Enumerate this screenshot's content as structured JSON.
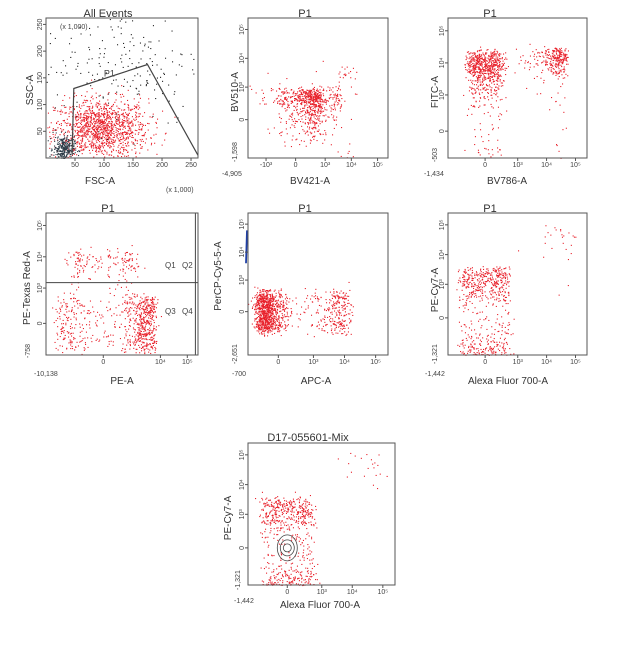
{
  "colors": {
    "events": "#e8202a",
    "dense_events": "#2b3a46",
    "sparse_events": "#222222",
    "gate_line": "#444444",
    "blue_marker": "#1f3fa6",
    "frame": "#555555"
  },
  "chart_data": [
    {
      "id": "p1",
      "type": "scatter",
      "title": "All Events",
      "xlabel": "FSC-A",
      "ylabel": "SSC-A",
      "x_scale_note": "(x 1,000)",
      "y_scale_note": "(x 1,000)",
      "xlim": [
        0,
        262
      ],
      "ylim": [
        0,
        262
      ],
      "x_ticks": [
        "50",
        "100",
        "150",
        "200",
        "250"
      ],
      "y_ticks": [
        "50",
        "100",
        "150",
        "200",
        "250"
      ],
      "gate": {
        "name": "P1",
        "vertices": [
          [
            45,
            5
          ],
          [
            48,
            130
          ],
          [
            175,
            175
          ],
          [
            262,
            5
          ]
        ]
      },
      "populations": [
        {
          "color": "events",
          "n": 1300,
          "cx": 95,
          "cy": 55,
          "sx": 40,
          "sy": 28
        },
        {
          "color": "dense_events",
          "n": 280,
          "cx": 30,
          "cy": 18,
          "sx": 9,
          "sy": 12
        },
        {
          "color": "sparse_events",
          "n": 200,
          "cx": 130,
          "cy": 180,
          "sx": 70,
          "sy": 60
        }
      ]
    },
    {
      "id": "p2",
      "type": "scatter",
      "title": "P1",
      "xlabel": "BV421-A",
      "ylabel": "BV510-A",
      "xlim": [
        -4905,
        250000
      ],
      "ylim": [
        -1598,
        250000
      ],
      "x_min_label": "-4,905",
      "y_min_label": "-1,598",
      "x_ticks": [
        "-10³",
        "0",
        "10³",
        "10⁴",
        "10⁵"
      ],
      "y_ticks": [
        "0",
        "10³",
        "10⁴",
        "10⁵"
      ],
      "populations": [
        {
          "color": "events",
          "n": 600,
          "cx": 200,
          "cy": 300,
          "sx": 250,
          "sy": 300
        },
        {
          "color": "events",
          "n": 150,
          "cx": 1500,
          "cy": 400,
          "sx": 1500,
          "sy": 300
        },
        {
          "color": "events",
          "n": 60,
          "cx": 3000,
          "cy": 800,
          "sx": 5000,
          "sy": 3000
        }
      ]
    },
    {
      "id": "p3",
      "type": "scatter",
      "title": "P1",
      "xlabel": "BV786-A",
      "ylabel": "FITC-A",
      "xlim": [
        -1434,
        250000
      ],
      "ylim": [
        -503,
        250000
      ],
      "x_min_label": "-1,434",
      "y_min_label": "-503",
      "x_ticks": [
        "0",
        "10³",
        "10⁴",
        "10⁵"
      ],
      "y_ticks": [
        "0",
        "10³",
        "10⁴",
        "10⁵"
      ],
      "populations": [
        {
          "color": "events",
          "n": 1100,
          "cx": 0,
          "cy": 2500,
          "sx": 150,
          "sy": 9000
        },
        {
          "color": "events",
          "n": 350,
          "cx": 20000,
          "cy": 12000,
          "sx": 14000,
          "sy": 9000
        }
      ]
    },
    {
      "id": "p4",
      "type": "scatter",
      "title": "P1",
      "xlabel": "PE-A",
      "ylabel": "PE-Texas Red-A",
      "xlim": [
        -10138,
        250000
      ],
      "ylim": [
        -758,
        250000
      ],
      "x_min_label": "-10,138",
      "y_min_label": "-758",
      "x_ticks": [
        "0",
        "10⁴",
        "10⁵"
      ],
      "y_ticks": [
        "0",
        "10³",
        "10⁴",
        "10⁵"
      ],
      "quadrants": {
        "x_split": 200000,
        "y_split": 1500,
        "labels": [
          "Q1",
          "Q2",
          "Q3",
          "Q4"
        ]
      },
      "populations": [
        {
          "color": "events",
          "n": 700,
          "cx": 1500,
          "cy": 0,
          "sx": 2500,
          "sy": 250
        },
        {
          "color": "events",
          "n": 220,
          "cx": 0,
          "cy": 4000,
          "sx": 700,
          "sy": 6000
        }
      ]
    },
    {
      "id": "p5",
      "type": "scatter",
      "title": "P1",
      "xlabel": "APC-A",
      "ylabel": "PerCP-Cy5-5-A",
      "xlim": [
        -700,
        250000
      ],
      "ylim": [
        -2651,
        250000
      ],
      "x_min_label": "-700",
      "y_min_label": "-2,651",
      "x_ticks": [
        "0",
        "10³",
        "10⁴",
        "10⁵"
      ],
      "y_ticks": [
        "0",
        "10³",
        "10⁴",
        "10⁵"
      ],
      "blue_marker": {
        "x": -700,
        "y0": 4000,
        "y1": 60000
      },
      "populations": [
        {
          "color": "events",
          "n": 900,
          "cx": -150,
          "cy": 0,
          "sx": 120,
          "sy": 180
        },
        {
          "color": "events",
          "n": 400,
          "cx": 2000,
          "cy": 0,
          "sx": 6000,
          "sy": 200
        }
      ]
    },
    {
      "id": "p6",
      "type": "scatter",
      "title": "P1",
      "xlabel": "Alexa Fluor 700-A",
      "ylabel": "PE-Cy7-A",
      "xlim": [
        -1442,
        250000
      ],
      "ylim": [
        -1321,
        250000
      ],
      "x_min_label": "-1,442",
      "y_min_label": "-1,321",
      "x_ticks": [
        "0",
        "10³",
        "10⁴",
        "10⁵"
      ],
      "y_ticks": [
        "0",
        "10³",
        "10⁴",
        "10⁵"
      ],
      "populations": [
        {
          "color": "events",
          "n": 700,
          "cx": 0,
          "cy": 400,
          "sx": 250,
          "sy": 1500
        },
        {
          "color": "events",
          "n": 40,
          "cx": 30000,
          "cy": 30000,
          "sx": 40000,
          "sy": 40000
        }
      ]
    },
    {
      "id": "p7",
      "type": "scatter",
      "title": "D17-055601-Mix",
      "xlabel": "Alexa Fluor 700-A",
      "ylabel": "PE-Cy7-A",
      "xlim": [
        -1442,
        250000
      ],
      "ylim": [
        -1321,
        250000
      ],
      "x_min_label": "-1,442",
      "y_min_label": "-1,321",
      "x_ticks": [
        "0",
        "10³",
        "10⁴",
        "10⁵"
      ],
      "y_ticks": [
        "0",
        "10³",
        "10⁴",
        "10⁵"
      ],
      "contour_at": {
        "x": 0,
        "y": 0
      },
      "populations": [
        {
          "color": "events",
          "n": 700,
          "cx": 0,
          "cy": 400,
          "sx": 250,
          "sy": 1500
        },
        {
          "color": "events",
          "n": 40,
          "cx": 30000,
          "cy": 30000,
          "sx": 40000,
          "sy": 40000
        }
      ]
    }
  ]
}
